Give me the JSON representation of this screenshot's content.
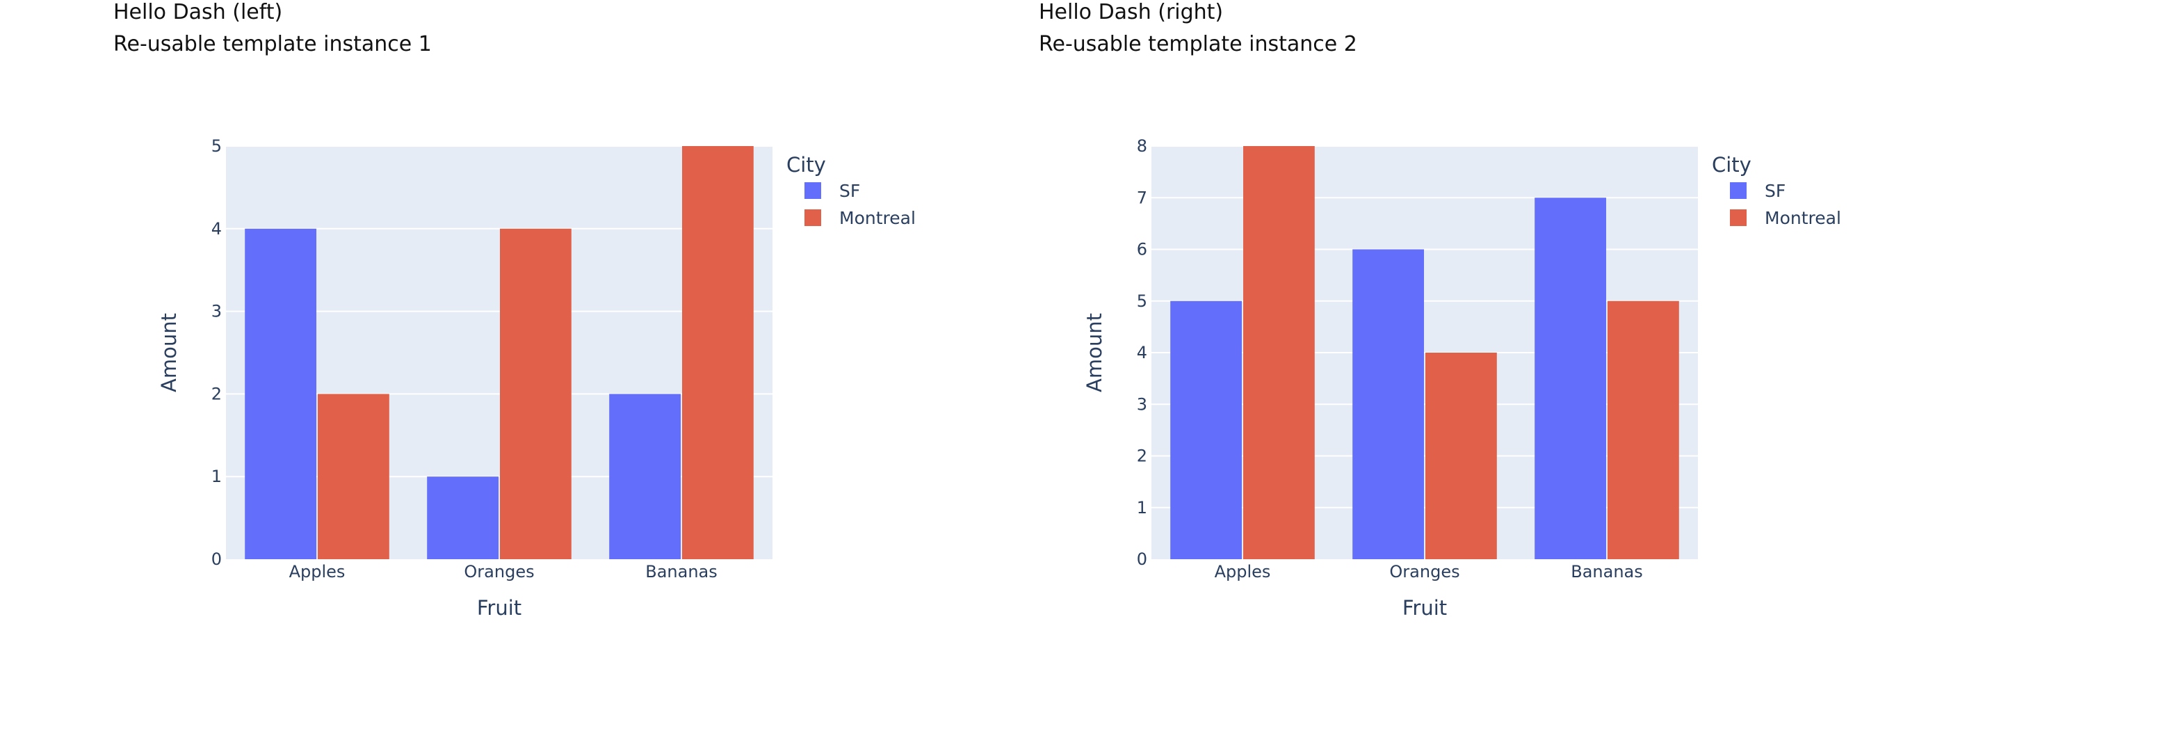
{
  "panels": [
    {
      "title": "Hello Dash (left)",
      "subtitle": "Re-usable template instance 1",
      "chart_data": {
        "type": "bar",
        "barmode": "group",
        "categories": [
          "Apples",
          "Oranges",
          "Bananas"
        ],
        "series": [
          {
            "name": "SF",
            "values": [
              4,
              1,
              2
            ]
          },
          {
            "name": "Montreal",
            "values": [
              2,
              4,
              5
            ]
          }
        ],
        "xlabel": "Fruit",
        "ylabel": "Amount",
        "ylim": [
          0,
          5
        ],
        "yticks": [
          0,
          1,
          2,
          3,
          4,
          5
        ],
        "grid": true,
        "legend_title": "City",
        "legend_position": "top-right"
      }
    },
    {
      "title": "Hello Dash (right)",
      "subtitle": "Re-usable template instance 2",
      "chart_data": {
        "type": "bar",
        "barmode": "group",
        "categories": [
          "Apples",
          "Oranges",
          "Bananas"
        ],
        "series": [
          {
            "name": "SF",
            "values": [
              5,
              6,
              7
            ]
          },
          {
            "name": "Montreal",
            "values": [
              8,
              4,
              5
            ]
          }
        ],
        "xlabel": "Fruit",
        "ylabel": "Amount",
        "ylim": [
          0,
          8
        ],
        "yticks": [
          0,
          1,
          2,
          3,
          4,
          5,
          6,
          7,
          8
        ],
        "grid": true,
        "legend_title": "City",
        "legend_position": "top-right"
      }
    }
  ],
  "colors": {
    "SF": "#636efa",
    "Montreal": "#e0604a",
    "plot_bg": "#e5ecf6",
    "grid": "#ffffff",
    "text": "#2a3f5f"
  }
}
